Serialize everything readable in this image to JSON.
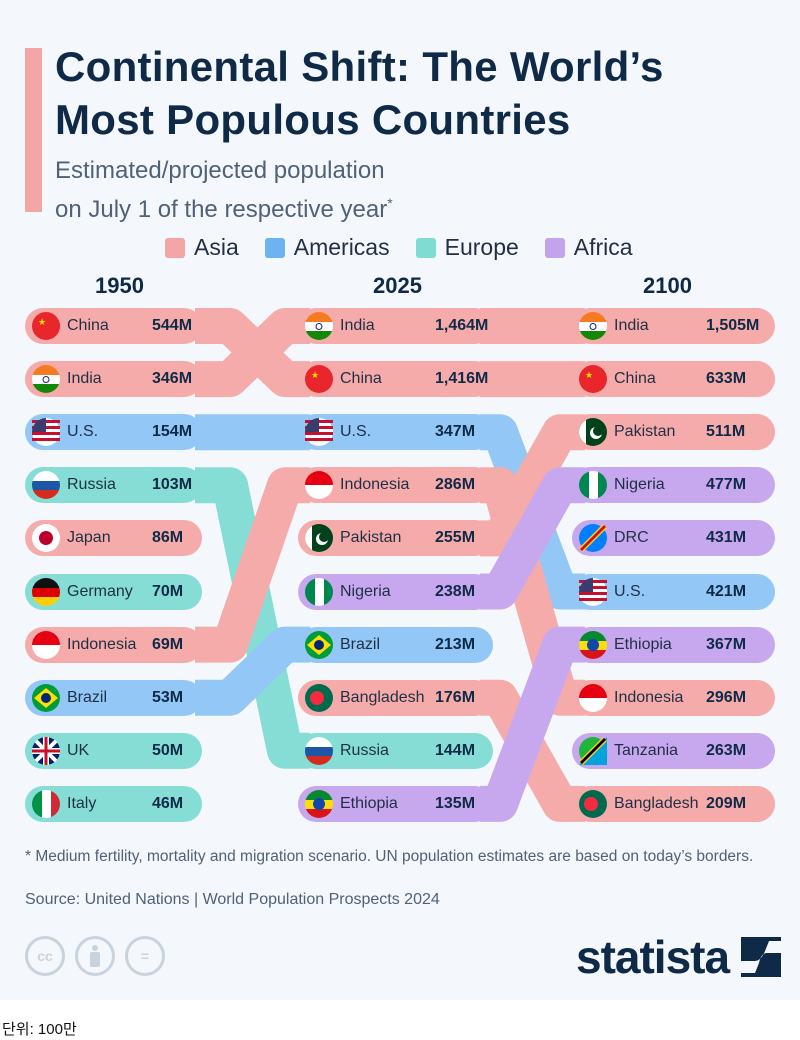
{
  "title_line1": "Continental Shift: The World’s",
  "title_line2": "Most Populous Countries",
  "subtitle_line1": "Estimated/projected population",
  "subtitle_line2": "on July 1 of the respective year",
  "subtitle_mark": "*",
  "legend": [
    {
      "label": "Asia",
      "color": "#f4a5a5"
    },
    {
      "label": "Americas",
      "color": "#6db3f2"
    },
    {
      "label": "Europe",
      "color": "#7fdcd4"
    },
    {
      "label": "Africa",
      "color": "#c3a3ec"
    }
  ],
  "region_colors": {
    "Asia": "#f6abab",
    "Americas": "#93c7f6",
    "Europe": "#86ddd5",
    "Africa": "#c7a8ef"
  },
  "chart_data": {
    "type": "line",
    "subtype": "bump",
    "columns": [
      {
        "year": "1950",
        "entries": [
          {
            "country": "China",
            "value": 544,
            "label": "544M",
            "region": "Asia"
          },
          {
            "country": "India",
            "value": 346,
            "label": "346M",
            "region": "Asia"
          },
          {
            "country": "U.S.",
            "value": 154,
            "label": "154M",
            "region": "Americas"
          },
          {
            "country": "Russia",
            "value": 103,
            "label": "103M",
            "region": "Europe"
          },
          {
            "country": "Japan",
            "value": 86,
            "label": "86M",
            "region": "Asia"
          },
          {
            "country": "Germany",
            "value": 70,
            "label": "70M",
            "region": "Europe"
          },
          {
            "country": "Indonesia",
            "value": 69,
            "label": "69M",
            "region": "Asia"
          },
          {
            "country": "Brazil",
            "value": 53,
            "label": "53M",
            "region": "Americas"
          },
          {
            "country": "UK",
            "value": 50,
            "label": "50M",
            "region": "Europe"
          },
          {
            "country": "Italy",
            "value": 46,
            "label": "46M",
            "region": "Europe"
          }
        ]
      },
      {
        "year": "2025",
        "entries": [
          {
            "country": "India",
            "value": 1464,
            "label": "1,464M",
            "region": "Asia"
          },
          {
            "country": "China",
            "value": 1416,
            "label": "1,416M",
            "region": "Asia"
          },
          {
            "country": "U.S.",
            "value": 347,
            "label": "347M",
            "region": "Americas"
          },
          {
            "country": "Indonesia",
            "value": 286,
            "label": "286M",
            "region": "Asia"
          },
          {
            "country": "Pakistan",
            "value": 255,
            "label": "255M",
            "region": "Asia"
          },
          {
            "country": "Nigeria",
            "value": 238,
            "label": "238M",
            "region": "Africa"
          },
          {
            "country": "Brazil",
            "value": 213,
            "label": "213M",
            "region": "Americas"
          },
          {
            "country": "Bangladesh",
            "value": 176,
            "label": "176M",
            "region": "Asia"
          },
          {
            "country": "Russia",
            "value": 144,
            "label": "144M",
            "region": "Europe"
          },
          {
            "country": "Ethiopia",
            "value": 135,
            "label": "135M",
            "region": "Africa"
          }
        ]
      },
      {
        "year": "2100",
        "entries": [
          {
            "country": "India",
            "value": 1505,
            "label": "1,505M",
            "region": "Asia"
          },
          {
            "country": "China",
            "value": 633,
            "label": "633M",
            "region": "Asia"
          },
          {
            "country": "Pakistan",
            "value": 511,
            "label": "511M",
            "region": "Asia"
          },
          {
            "country": "Nigeria",
            "value": 477,
            "label": "477M",
            "region": "Africa"
          },
          {
            "country": "DRC",
            "value": 431,
            "label": "431M",
            "region": "Africa"
          },
          {
            "country": "U.S.",
            "value": 421,
            "label": "421M",
            "region": "Americas"
          },
          {
            "country": "Ethiopia",
            "value": 367,
            "label": "367M",
            "region": "Africa"
          },
          {
            "country": "Indonesia",
            "value": 296,
            "label": "296M",
            "region": "Asia"
          },
          {
            "country": "Tanzania",
            "value": 263,
            "label": "263M",
            "region": "Africa"
          },
          {
            "country": "Bangladesh",
            "value": 209,
            "label": "209M",
            "region": "Asia"
          }
        ]
      }
    ]
  },
  "footnote": "* Medium fertility, mortality and migration scenario. UN population estimates are based on today’s borders.",
  "source": "Source: United Nations | World Population Prospects 2024",
  "license_icons": [
    "cc-icon",
    "attribution-icon",
    "no-derivatives-icon"
  ],
  "brand": "statista",
  "unit_note": "단위: 100만"
}
